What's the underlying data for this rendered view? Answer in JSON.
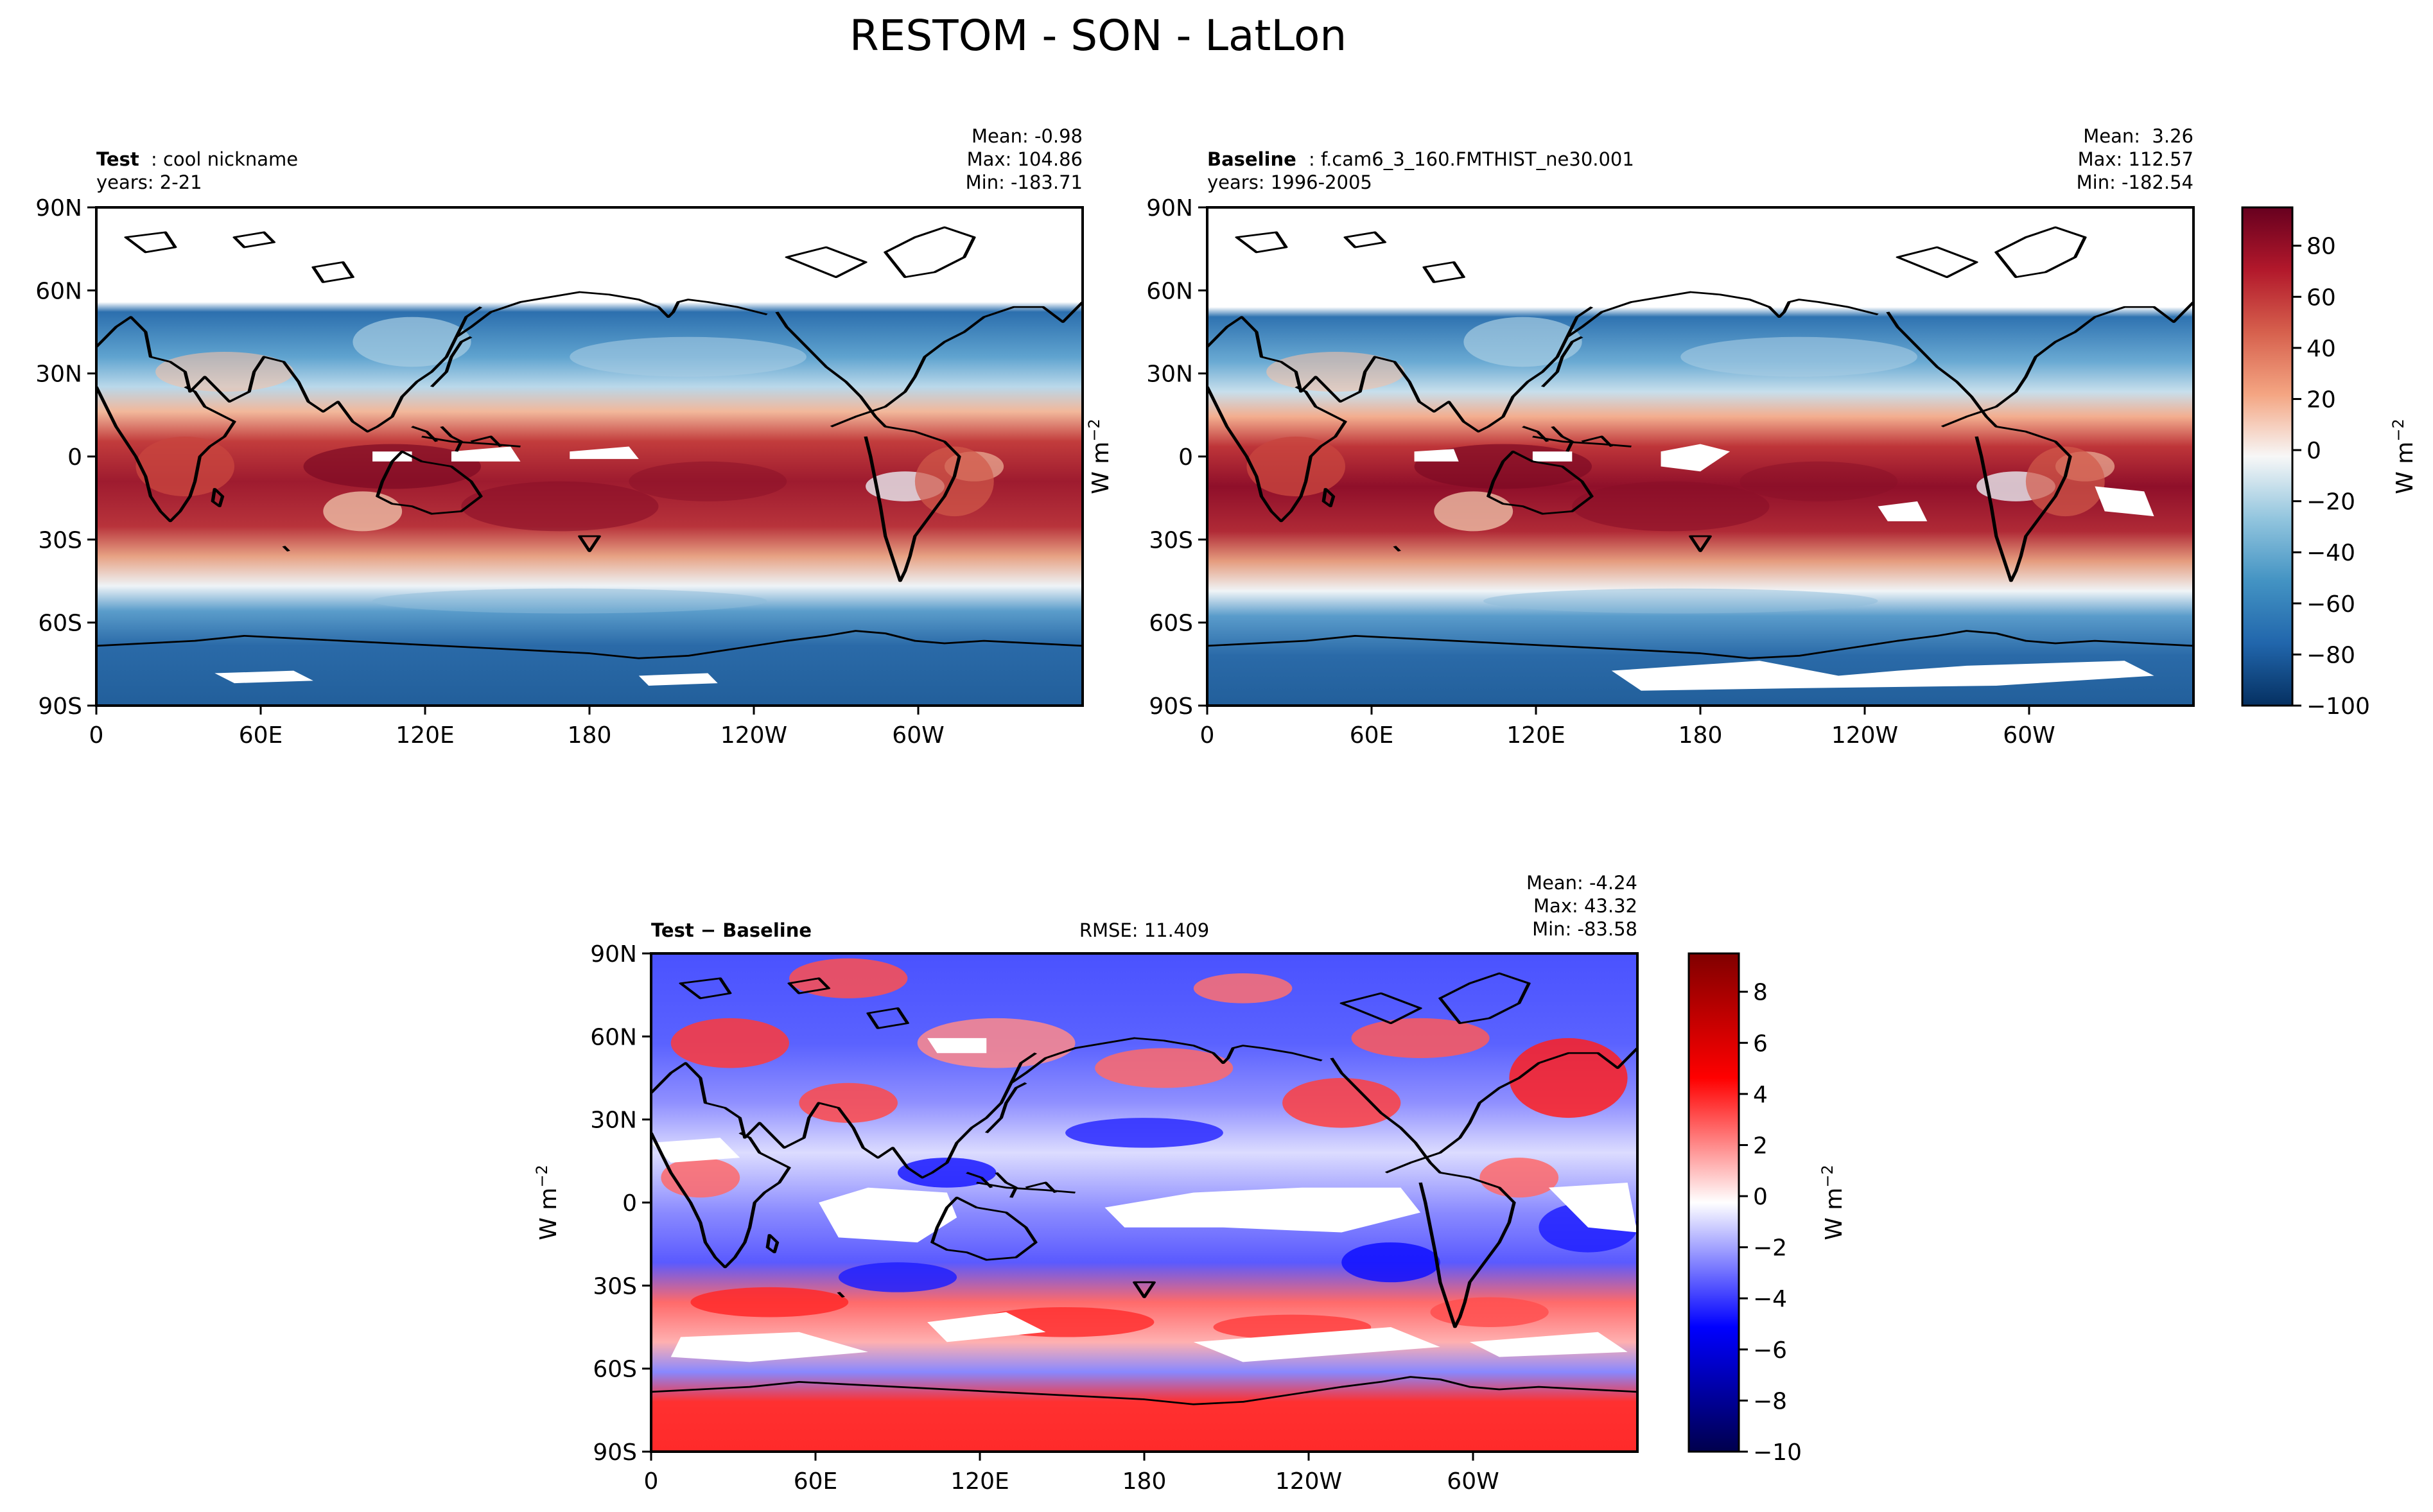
{
  "figure": {
    "title": "RESTOM - SON - LatLon"
  },
  "units_label": "W m",
  "units_exp": "−2",
  "axis_ticks": {
    "lon": [
      "0",
      "60E",
      "120E",
      "180",
      "120W",
      "60W"
    ],
    "lat": [
      "90N",
      "60N",
      "30N",
      "0",
      "30S",
      "60S",
      "90S"
    ]
  },
  "chart_data": [
    {
      "type": "heatmap",
      "name": "test",
      "label_bold": "Test",
      "label_rest": ": cool nickname",
      "years": "years: 2-21",
      "stats": [
        "Mean: -0.98",
        "Max: 104.86",
        "Min: -183.71"
      ],
      "xlim": [
        0,
        360
      ],
      "ylim": [
        -90,
        90
      ],
      "colormap": "RdBu_r",
      "value_range": [
        -100,
        95
      ]
    },
    {
      "type": "heatmap",
      "name": "baseline",
      "label_bold": "Baseline",
      "label_rest": ": f.cam6_3_160.FMTHIST_ne30.001",
      "years": "years: 1996-2005",
      "stats": [
        "Mean:  3.26",
        "Max: 112.57",
        "Min: -182.54"
      ],
      "xlim": [
        0,
        360
      ],
      "ylim": [
        -90,
        90
      ],
      "colormap": "RdBu_r",
      "value_range": [
        -100,
        95
      ]
    },
    {
      "type": "heatmap",
      "name": "difference",
      "label_bold": "Test − Baseline",
      "rmse": "RMSE: 11.409",
      "stats": [
        "Mean: -4.24",
        "Max: 43.32",
        "Min: -83.58"
      ],
      "xlim": [
        0,
        360
      ],
      "ylim": [
        -90,
        90
      ],
      "colormap": "seismic",
      "value_range": [
        -10,
        9.5
      ]
    }
  ],
  "colorbars": [
    {
      "name": "main-colorbar",
      "ticks": [
        "80",
        "60",
        "40",
        "20",
        "0",
        "−20",
        "−40",
        "−60",
        "−80",
        "−100"
      ],
      "tick_values": [
        80,
        60,
        40,
        20,
        0,
        -20,
        -40,
        -60,
        -80,
        -100
      ],
      "range": [
        -100,
        95
      ]
    },
    {
      "name": "diff-colorbar",
      "ticks": [
        "8",
        "6",
        "4",
        "2",
        "0",
        "−2",
        "−4",
        "−6",
        "−8",
        "−10"
      ],
      "tick_values": [
        8,
        6,
        4,
        2,
        0,
        -2,
        -4,
        -6,
        -8,
        -10
      ],
      "range": [
        -10,
        9.5
      ]
    }
  ],
  "colors": {
    "main": [
      "#053061",
      "#2166ac",
      "#4393c3",
      "#92c5de",
      "#f7f7f7",
      "#f4a582",
      "#d6604d",
      "#b2182b",
      "#67001f"
    ],
    "diff": [
      "#00004c",
      "#0000ff",
      "#ffffff",
      "#ff0000",
      "#800000"
    ],
    "land_outline": "#000000",
    "missing": "#ffffff"
  }
}
